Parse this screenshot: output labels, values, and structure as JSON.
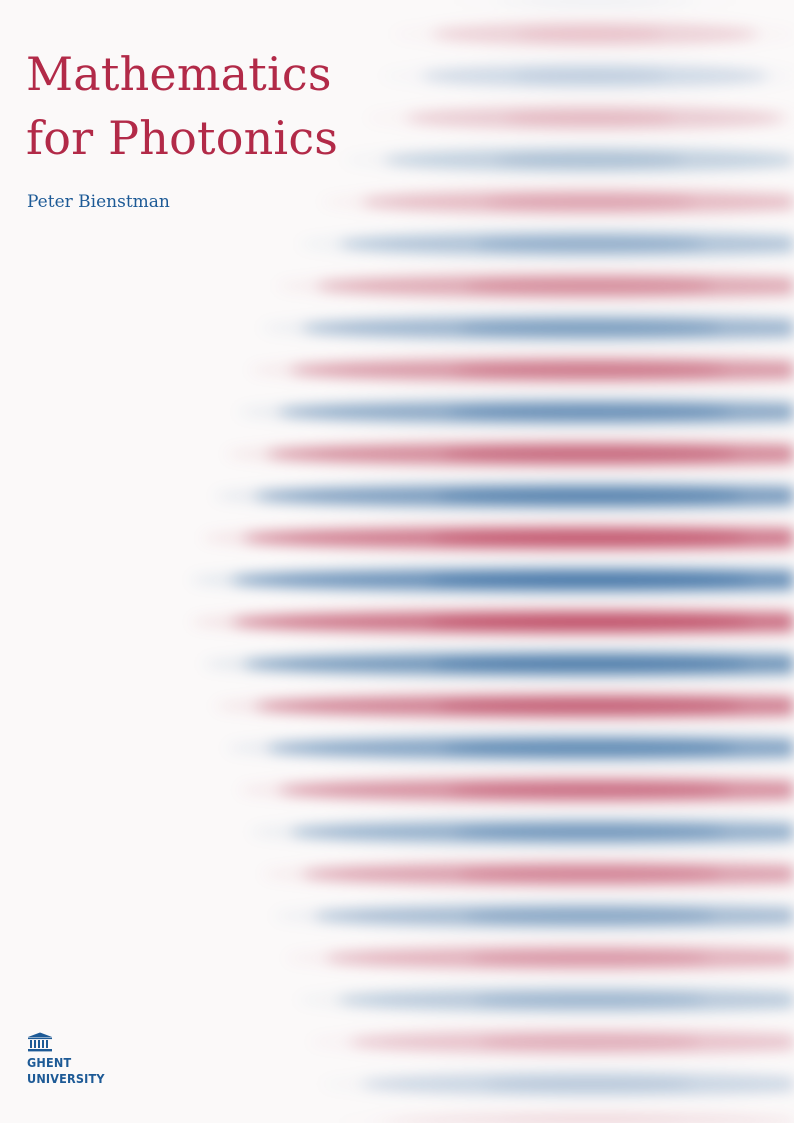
{
  "cover": {
    "title_line1": "Mathematics",
    "title_line2": "for Photonics",
    "author": "Peter Bienstman"
  },
  "logo": {
    "line1": "GHENT",
    "line2": "UNIVERSITY",
    "icon": "building-columns-icon"
  },
  "colors": {
    "title": "#b22a48",
    "author": "#1d5a96",
    "field_red": "#b22a48",
    "field_blue": "#1d5a96",
    "background": "#fbf9f9"
  }
}
